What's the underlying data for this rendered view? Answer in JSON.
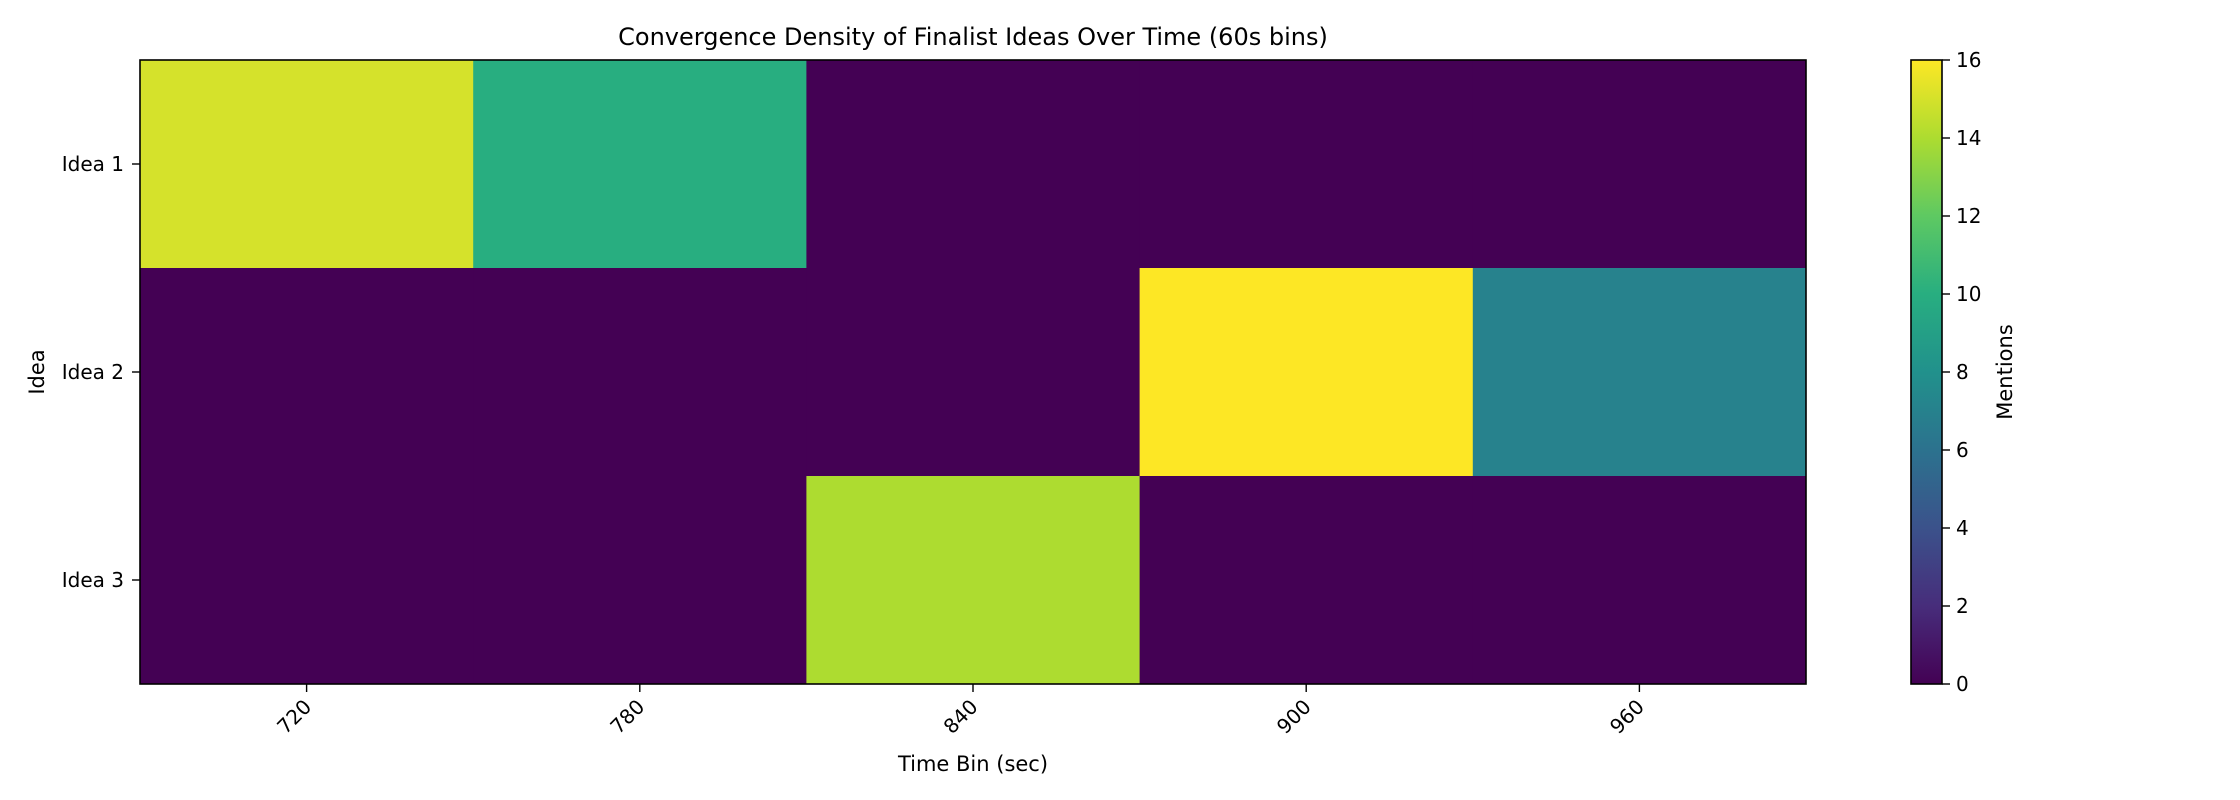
{
  "chart_data": {
    "type": "heatmap",
    "title": "Convergence Density of Finalist Ideas Over Time (60s bins)",
    "xlabel": "Time Bin (sec)",
    "ylabel": "Idea",
    "x_categories": [
      "720",
      "780",
      "840",
      "900",
      "960"
    ],
    "y_categories": [
      "Idea 1",
      "Idea 2",
      "Idea 3"
    ],
    "values": [
      [
        15,
        10,
        0,
        0,
        0
      ],
      [
        0,
        0,
        0,
        16,
        7
      ],
      [
        0,
        0,
        14,
        0,
        0
      ]
    ],
    "colorbar": {
      "label": "Mentions",
      "min": 0,
      "max": 16,
      "ticks": [
        "0",
        "2",
        "4",
        "6",
        "8",
        "10",
        "12",
        "14",
        "16"
      ]
    },
    "colormap": "viridis",
    "grid": false
  }
}
